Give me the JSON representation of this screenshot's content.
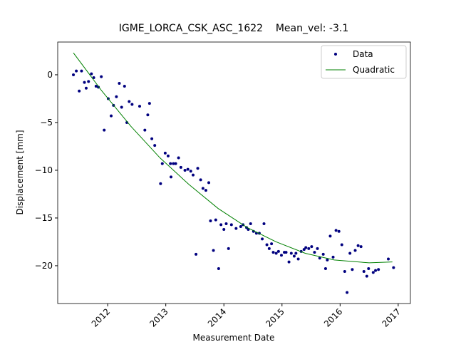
{
  "chart_data": {
    "type": "scatter",
    "title": "IGME_LORCA_CSK_ASC_1622    Mean_vel: -3.1",
    "xlabel": "Measurement Date",
    "ylabel": "Displacement [mm]",
    "xlim": [
      2011.14,
      2017.21
    ],
    "ylim": [
      -23.96,
      3.43
    ],
    "xticks": [
      2012,
      2013,
      2014,
      2015,
      2016,
      2017
    ],
    "yticks": [
      {
        "value": -20,
        "label": "−20"
      },
      {
        "value": -15,
        "label": "−15"
      },
      {
        "value": -10,
        "label": "−10"
      },
      {
        "value": -5,
        "label": "−5"
      },
      0
    ],
    "legend": "upper right",
    "series": [
      {
        "name": "Data",
        "color": "#00007f",
        "style": "markers",
        "x": [
          2011.41,
          2011.46,
          2011.51,
          2011.55,
          2011.6,
          2011.63,
          2011.67,
          2011.72,
          2011.76,
          2011.8,
          2011.84,
          2011.89,
          2011.94,
          2012.01,
          2012.06,
          2012.1,
          2012.15,
          2012.2,
          2012.24,
          2012.29,
          2012.33,
          2012.37,
          2012.42,
          2012.55,
          2012.64,
          2012.69,
          2012.72,
          2012.76,
          2012.81,
          2012.91,
          2012.94,
          2012.99,
          2013.04,
          2013.09,
          2013.08,
          2013.13,
          2013.17,
          2013.22,
          2013.26,
          2013.33,
          2013.38,
          2013.43,
          2013.47,
          2013.52,
          2013.55,
          2013.6,
          2013.64,
          2013.69,
          2013.74,
          2013.77,
          2013.82,
          2013.86,
          2013.91,
          2013.95,
          2014.0,
          2014.04,
          2014.08,
          2014.13,
          2014.21,
          2014.29,
          2014.33,
          2014.39,
          2014.42,
          2014.46,
          2014.51,
          2014.56,
          2014.61,
          2014.66,
          2014.69,
          2014.74,
          2014.78,
          2014.82,
          2014.85,
          2014.9,
          2014.94,
          2014.99,
          2015.04,
          2015.07,
          2015.12,
          2015.16,
          2015.21,
          2015.24,
          2015.28,
          2015.33,
          2015.38,
          2015.41,
          2015.46,
          2015.51,
          2015.56,
          2015.61,
          2015.65,
          2015.71,
          2015.75,
          2015.78,
          2015.83,
          2015.88,
          2015.93,
          2015.98,
          2016.03,
          2016.08,
          2016.12,
          2016.17,
          2016.21,
          2016.26,
          2016.31,
          2016.36,
          2016.41,
          2016.46,
          2016.49,
          2016.57,
          2016.61,
          2016.66,
          2016.83,
          2016.92
        ],
        "values": [
          0,
          0.4,
          -1.7,
          0.4,
          -0.8,
          -1.4,
          -0.7,
          0.1,
          -0.3,
          -1.2,
          -1.3,
          -0.2,
          -5.8,
          -2.5,
          -4.3,
          -3.2,
          -2.3,
          -0.9,
          -3.4,
          -1.2,
          -5.0,
          -2.8,
          -3.1,
          -3.3,
          -5.8,
          -4.2,
          -3.0,
          -6.7,
          -7.4,
          -11.4,
          -9.3,
          -8.2,
          -8.5,
          -10.7,
          -9.3,
          -9.3,
          -9.3,
          -8.7,
          -9.7,
          -10.0,
          -9.9,
          -10.1,
          -10.5,
          -18.8,
          -9.8,
          -11.0,
          -11.9,
          -12.1,
          -11.3,
          -15.3,
          -18.4,
          -15.2,
          -20.3,
          -15.7,
          -16.2,
          -15.6,
          -18.2,
          -15.7,
          -16.1,
          -15.9,
          -15.7,
          -16.0,
          -16.2,
          -15.6,
          -16.4,
          -16.6,
          -16.6,
          -17.2,
          -15.6,
          -17.8,
          -18.2,
          -17.7,
          -18.6,
          -18.7,
          -18.5,
          -18.9,
          -18.6,
          -18.6,
          -19.6,
          -18.7,
          -19.0,
          -18.7,
          -19.3,
          -18.5,
          -18.3,
          -18.1,
          -18.2,
          -18.0,
          -18.6,
          -18.2,
          -19.2,
          -18.8,
          -20.3,
          -19.4,
          -16.9,
          -19.1,
          -16.3,
          -16.4,
          -17.8,
          -20.6,
          -22.8,
          -18.7,
          -20.4,
          -18.4,
          -17.9,
          -18.0,
          -20.6,
          -21.1,
          -20.3,
          -20.7,
          -20.5,
          -20.4,
          -19.3,
          -20.2
        ]
      },
      {
        "name": "Quadratic",
        "color": "#008000",
        "style": "line",
        "x": [
          2011.41,
          2011.9,
          2012.4,
          2012.9,
          2013.4,
          2013.9,
          2014.4,
          2014.9,
          2015.4,
          2015.9,
          2016.5,
          2016.9
        ],
        "values": [
          2.3,
          -1.7,
          -5.4,
          -8.7,
          -11.5,
          -14.0,
          -16.0,
          -17.5,
          -18.7,
          -19.4,
          -19.7,
          -19.6
        ]
      }
    ]
  }
}
